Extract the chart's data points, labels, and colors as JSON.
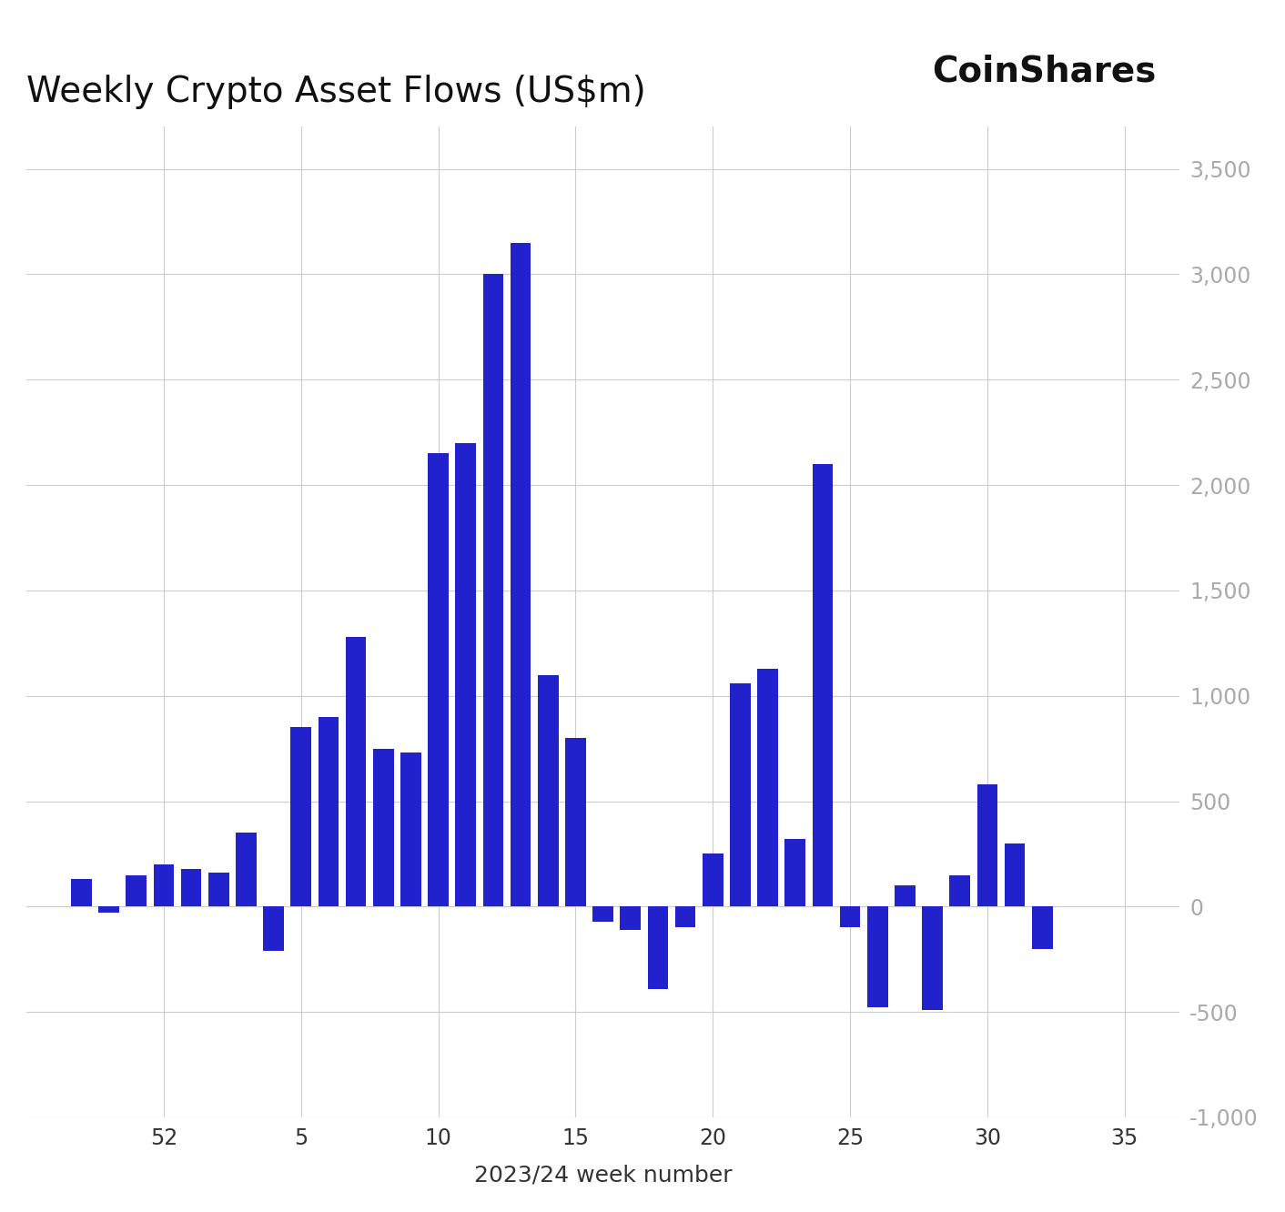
{
  "title": "Weekly Crypto Asset Flows (US$m)",
  "coinshares_label": "CoinShares",
  "xlabel": "2023/24 week number",
  "bar_color": "#2222cc",
  "background_color": "#ffffff",
  "grid_color": "#cccccc",
  "ytick_color": "#aaaaaa",
  "xtick_color": "#333333",
  "ylim": [
    -1000,
    3700
  ],
  "bar_data": [
    {
      "x": 49,
      "v": 130
    },
    {
      "x": 50,
      "v": -30
    },
    {
      "x": 51,
      "v": 150
    },
    {
      "x": 52,
      "v": 200
    },
    {
      "x": 53,
      "v": 180
    },
    {
      "x": 54,
      "v": 160
    },
    {
      "x": 55,
      "v": 350
    },
    {
      "x": 56,
      "v": -210
    },
    {
      "x": 57,
      "v": 850
    },
    {
      "x": 58,
      "v": 900
    },
    {
      "x": 59,
      "v": 1280
    },
    {
      "x": 60,
      "v": 750
    },
    {
      "x": 61,
      "v": 730
    },
    {
      "x": 62,
      "v": 2150
    },
    {
      "x": 63,
      "v": 2200
    },
    {
      "x": 64,
      "v": 3000
    },
    {
      "x": 65,
      "v": 3150
    },
    {
      "x": 66,
      "v": 1100
    },
    {
      "x": 67,
      "v": 800
    },
    {
      "x": 68,
      "v": -70
    },
    {
      "x": 69,
      "v": -110
    },
    {
      "x": 70,
      "v": -390
    },
    {
      "x": 71,
      "v": -100
    },
    {
      "x": 72,
      "v": 250
    },
    {
      "x": 73,
      "v": 1060
    },
    {
      "x": 74,
      "v": 1130
    },
    {
      "x": 75,
      "v": 320
    },
    {
      "x": 76,
      "v": 2100
    },
    {
      "x": 77,
      "v": -100
    },
    {
      "x": 78,
      "v": -480
    },
    {
      "x": 79,
      "v": 100
    },
    {
      "x": 80,
      "v": -490
    },
    {
      "x": 81,
      "v": 150
    },
    {
      "x": 82,
      "v": 580
    },
    {
      "x": 83,
      "v": 300
    },
    {
      "x": 84,
      "v": -200
    }
  ],
  "xtick_map": [
    {
      "x": 52,
      "label": "52"
    },
    {
      "x": 57,
      "label": "5"
    },
    {
      "x": 62,
      "label": "10"
    },
    {
      "x": 67,
      "label": "15"
    },
    {
      "x": 72,
      "label": "20"
    },
    {
      "x": 77,
      "label": "25"
    },
    {
      "x": 82,
      "label": "30"
    },
    {
      "x": 87,
      "label": "35"
    }
  ],
  "vgrid_x": [
    52,
    57,
    62,
    67,
    72,
    77,
    82,
    87
  ],
  "ytick_values": [
    -1000,
    -500,
    0,
    500,
    1000,
    1500,
    2000,
    2500,
    3000,
    3500
  ],
  "title_fontsize": 28,
  "coinshares_fontsize": 28,
  "xlabel_fontsize": 18,
  "tick_fontsize": 17,
  "xlim_left": 47,
  "xlim_right": 89
}
